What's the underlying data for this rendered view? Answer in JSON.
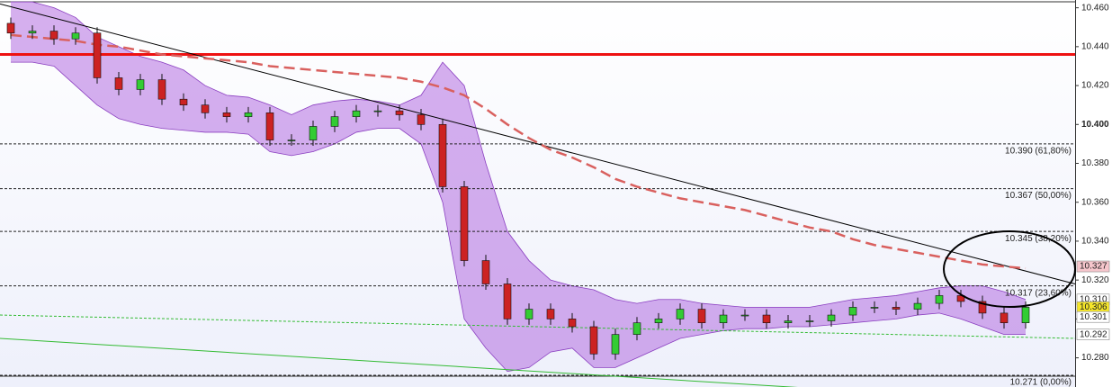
{
  "chart_data": {
    "type": "candlestick",
    "ylim": [
      10.265,
      10.464
    ],
    "yticks": [
      {
        "value": 10.28,
        "label": "10.280"
      },
      {
        "value": 10.3,
        "label": "10.300"
      },
      {
        "value": 10.32,
        "label": "10.320"
      },
      {
        "value": 10.34,
        "label": "10.340"
      },
      {
        "value": 10.36,
        "label": "10.360"
      },
      {
        "value": 10.38,
        "label": "10.380"
      },
      {
        "value": 10.4,
        "label": "10.400"
      },
      {
        "value": 10.42,
        "label": "10.420"
      },
      {
        "value": 10.44,
        "label": "10.440"
      },
      {
        "value": 10.46,
        "label": "10.460"
      }
    ],
    "up_color": "#33cc33",
    "down_color": "#cc2222",
    "open": [
      10.452,
      10.447,
      10.448,
      10.444,
      10.447,
      10.424,
      10.418,
      10.423,
      10.413,
      10.41,
      10.406,
      10.404,
      10.406,
      10.392,
      10.392,
      10.399,
      10.404,
      10.407,
      10.407,
      10.405,
      10.4,
      10.368,
      10.33,
      10.318,
      10.3,
      10.305,
      10.3,
      10.296,
      10.282,
      10.292,
      10.298,
      10.3,
      10.305,
      10.298,
      10.302,
      10.302,
      10.298,
      10.299,
      10.299,
      10.302,
      10.306,
      10.306,
      10.305,
      10.308,
      10.312,
      10.309,
      10.303,
      10.298
    ],
    "high": [
      10.455,
      10.451,
      10.451,
      10.45,
      10.45,
      10.427,
      10.426,
      10.426,
      10.416,
      10.413,
      10.409,
      10.409,
      10.409,
      10.395,
      10.402,
      10.407,
      10.41,
      10.41,
      10.41,
      10.408,
      10.403,
      10.371,
      10.333,
      10.321,
      10.308,
      10.308,
      10.303,
      10.299,
      10.295,
      10.301,
      10.303,
      10.308,
      10.308,
      10.305,
      10.305,
      10.305,
      10.302,
      10.302,
      10.305,
      10.309,
      10.309,
      10.309,
      10.311,
      10.315,
      10.315,
      10.312,
      10.306,
      10.309
    ],
    "low": [
      10.444,
      10.444,
      10.441,
      10.441,
      10.421,
      10.415,
      10.415,
      10.41,
      10.407,
      10.403,
      10.401,
      10.401,
      10.389,
      10.389,
      10.389,
      10.396,
      10.401,
      10.404,
      10.402,
      10.397,
      10.365,
      10.327,
      10.315,
      10.297,
      10.297,
      10.297,
      10.293,
      10.279,
      10.279,
      10.289,
      10.295,
      10.297,
      10.295,
      10.295,
      10.299,
      10.295,
      10.295,
      10.296,
      10.296,
      10.299,
      10.303,
      10.302,
      10.302,
      10.305,
      10.306,
      10.3,
      10.295,
      10.295
    ],
    "close": [
      10.447,
      10.448,
      10.444,
      10.447,
      10.424,
      10.418,
      10.423,
      10.413,
      10.41,
      10.406,
      10.404,
      10.406,
      10.392,
      10.392,
      10.399,
      10.404,
      10.407,
      10.407,
      10.405,
      10.4,
      10.368,
      10.33,
      10.318,
      10.3,
      10.305,
      10.3,
      10.296,
      10.282,
      10.292,
      10.298,
      10.3,
      10.305,
      10.298,
      10.302,
      10.302,
      10.298,
      10.299,
      10.299,
      10.302,
      10.306,
      10.306,
      10.305,
      10.308,
      10.312,
      10.309,
      10.303,
      10.298,
      10.306
    ],
    "band_color": "#b36ee0",
    "band_upper": [
      10.463,
      10.463,
      10.46,
      10.455,
      10.445,
      10.44,
      10.435,
      10.432,
      10.428,
      10.42,
      10.415,
      10.414,
      10.41,
      10.405,
      10.41,
      10.412,
      10.413,
      10.412,
      10.41,
      10.415,
      10.432,
      10.42,
      10.38,
      10.345,
      10.33,
      10.32,
      10.317,
      10.315,
      10.31,
      10.308,
      10.31,
      10.31,
      10.308,
      10.307,
      10.306,
      10.306,
      10.306,
      10.306,
      10.308,
      10.31,
      10.311,
      10.312,
      10.314,
      10.316,
      10.317,
      10.317,
      10.314,
      10.31
    ],
    "band_lower": [
      10.432,
      10.432,
      10.43,
      10.42,
      10.41,
      10.403,
      10.4,
      10.398,
      10.397,
      10.396,
      10.396,
      10.395,
      10.386,
      10.384,
      10.386,
      10.39,
      10.396,
      10.398,
      10.398,
      10.39,
      10.36,
      10.3,
      10.285,
      10.273,
      10.275,
      10.283,
      10.285,
      10.275,
      10.275,
      10.28,
      10.285,
      10.29,
      10.292,
      10.294,
      10.295,
      10.295,
      10.296,
      10.296,
      10.297,
      10.298,
      10.299,
      10.3,
      10.302,
      10.303,
      10.3,
      10.296,
      10.292,
      10.292
    ],
    "ma_color": "#d9605e",
    "ma": [
      10.446,
      10.445,
      10.444,
      10.443,
      10.441,
      10.44,
      10.438,
      10.436,
      10.435,
      10.434,
      10.433,
      10.432,
      10.43,
      10.429,
      10.428,
      10.427,
      10.426,
      10.425,
      10.424,
      10.422,
      10.419,
      10.415,
      10.408,
      10.4,
      10.393,
      10.387,
      10.383,
      10.378,
      10.372,
      10.368,
      10.365,
      10.362,
      10.36,
      10.358,
      10.356,
      10.353,
      10.35,
      10.347,
      10.345,
      10.341,
      10.338,
      10.336,
      10.334,
      10.332,
      10.33,
      10.328,
      10.327,
      10.326
    ],
    "trendlines": [
      {
        "color": "#000000",
        "start": 10.462,
        "end": 10.318,
        "dashed": false
      },
      {
        "color": "#33bb33",
        "start": 10.302,
        "end": 10.29,
        "dashed": true
      },
      {
        "color": "#33bb33",
        "start": 10.29,
        "end": 10.256,
        "dashed": false
      }
    ],
    "resistance": {
      "value": 10.436,
      "color": "#ee1111"
    },
    "fib_levels": [
      {
        "value": 10.39,
        "label": "10.390 (61,80%)"
      },
      {
        "value": 10.367,
        "label": "10.367 (50,00%)"
      },
      {
        "value": 10.345,
        "label": "10.345 (38,20%)"
      },
      {
        "value": 10.317,
        "label": "10.317 (23,60%)"
      },
      {
        "value": 10.271,
        "label": "10.271 (0,00%)"
      }
    ],
    "price_tags": [
      {
        "value": 10.327,
        "label": "10.327",
        "color": "#f6c6cc"
      },
      {
        "value": 10.31,
        "label": "10.310",
        "color": "#ffffff"
      },
      {
        "value": 10.306,
        "label": "10.306",
        "color": "#f5e62a"
      },
      {
        "value": 10.301,
        "label": "10.301",
        "color": "#ffffff"
      },
      {
        "value": 10.292,
        "label": "10.292",
        "color": "#ffffff"
      }
    ]
  }
}
